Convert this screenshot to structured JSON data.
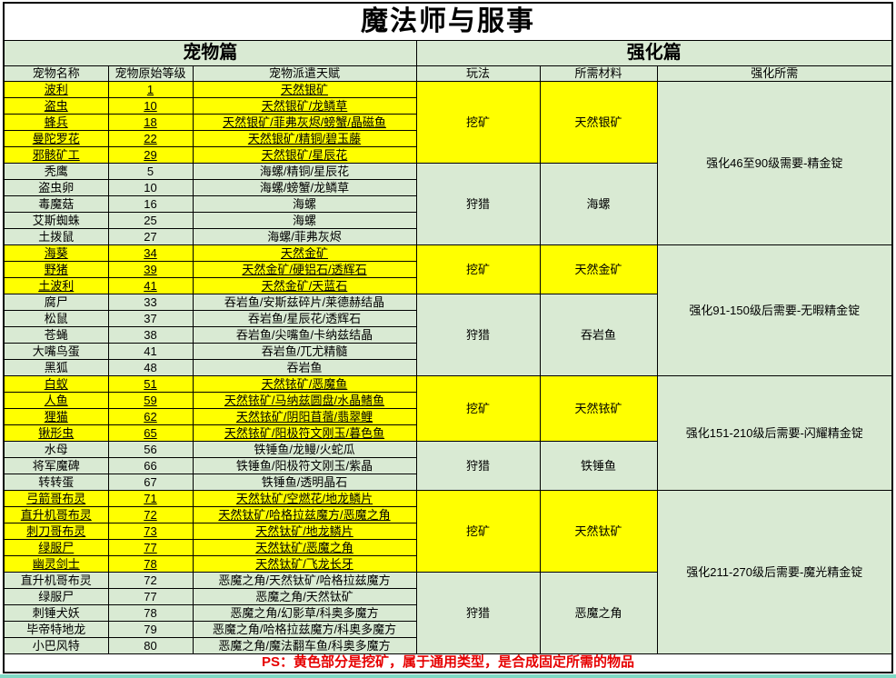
{
  "title": "魔法师与服事",
  "sections": {
    "pets": "宠物篇",
    "enhance": "强化篇"
  },
  "columns": [
    "宠物名称",
    "宠物原始等级",
    "宠物派遣天赋",
    "玩法",
    "所需材料",
    "强化所需"
  ],
  "colors": {
    "highlight": "#ffff00",
    "row_bg": "#d9ead3",
    "title_bg": "#ffffff",
    "border": "#000000",
    "footer_text": "#e60000"
  },
  "pets": [
    {
      "name": "波利",
      "level": "1",
      "talent": "天然银矿",
      "mining": true
    },
    {
      "name": "盗虫",
      "level": "10",
      "talent": "天然银矿/龙鳞草",
      "mining": true
    },
    {
      "name": "蜂兵",
      "level": "18",
      "talent": "天然银矿/菲弗灰烬/螃蟹/晶磁鱼",
      "mining": true
    },
    {
      "name": "曼陀罗花",
      "level": "22",
      "talent": "天然银矿/精铜/碧玉藤",
      "mining": true
    },
    {
      "name": "邪骸矿工",
      "level": "29",
      "talent": "天然银矿/星辰花",
      "mining": true
    },
    {
      "name": "秃鹰",
      "level": "5",
      "talent": "海螺/精铜/星辰花",
      "mining": false
    },
    {
      "name": "盗虫卵",
      "level": "10",
      "talent": "海螺/螃蟹/龙鳞草",
      "mining": false
    },
    {
      "name": "毒魔菇",
      "level": "16",
      "talent": "海螺",
      "mining": false
    },
    {
      "name": "艾斯蜘蛛",
      "level": "25",
      "talent": "海螺",
      "mining": false
    },
    {
      "name": "土拨鼠",
      "level": "27",
      "talent": "海螺/菲弗灰烬",
      "mining": false
    },
    {
      "name": "海葵",
      "level": "34",
      "talent": "天然金矿",
      "mining": true
    },
    {
      "name": "野猪",
      "level": "39",
      "talent": "天然金矿/硬铝石/透辉石",
      "mining": true
    },
    {
      "name": "土波利",
      "level": "41",
      "talent": "天然金矿/天蓝石",
      "mining": true
    },
    {
      "name": "腐尸",
      "level": "33",
      "talent": "吞岩鱼/安斯兹碎片/莱德赫结晶",
      "mining": false
    },
    {
      "name": "松鼠",
      "level": "37",
      "talent": "吞岩鱼/星辰花/透辉石",
      "mining": false
    },
    {
      "name": "苍蝇",
      "level": "38",
      "talent": "吞岩鱼/尖嘴鱼/卡纳兹结晶",
      "mining": false
    },
    {
      "name": "大嘴鸟蛋",
      "level": "41",
      "talent": "吞岩鱼/兀尤精髓",
      "mining": false
    },
    {
      "name": "黑狐",
      "level": "48",
      "talent": "吞岩鱼",
      "mining": false
    },
    {
      "name": "白蚁",
      "level": "51",
      "talent": "天然铱矿/恶魔鱼",
      "mining": true
    },
    {
      "name": "人鱼",
      "level": "59",
      "talent": "天然铱矿/马纳兹圆盘/水晶鳍鱼",
      "mining": true
    },
    {
      "name": "狸猫",
      "level": "62",
      "talent": "天然铱矿/阴阳苜蓿/翡翠鲤",
      "mining": true
    },
    {
      "name": "锹形虫",
      "level": "65",
      "talent": "天然铱矿/阳极符文刚玉/暮色鱼",
      "mining": true
    },
    {
      "name": "水母",
      "level": "56",
      "talent": "铁锤鱼/龙鳗/火蛇瓜",
      "mining": false
    },
    {
      "name": "将军魔碑",
      "level": "66",
      "talent": "铁锤鱼/阳极符文刚玉/紫晶",
      "mining": false
    },
    {
      "name": "转转蛋",
      "level": "67",
      "talent": "铁锤鱼/透明晶石",
      "mining": false
    },
    {
      "name": "弓箭哥布灵",
      "level": "71",
      "talent": "天然钛矿/空燃花/地龙鳞片",
      "mining": true
    },
    {
      "name": "直升机哥布灵",
      "level": "72",
      "talent": "天然钛矿/哈格拉兹魔方/恶魔之角",
      "mining": true
    },
    {
      "name": "刺刀哥布灵",
      "level": "73",
      "talent": "天然钛矿/地龙鳞片",
      "mining": true
    },
    {
      "name": "绿服尸",
      "level": "77",
      "talent": "天然钛矿/恶魔之角",
      "mining": true
    },
    {
      "name": "幽灵剑士",
      "level": "78",
      "talent": "天然钛矿/飞龙长牙",
      "mining": true
    },
    {
      "name": "直升机哥布灵",
      "level": "72",
      "talent": "恶魔之角/天然钛矿/哈格拉兹魔方",
      "mining": false
    },
    {
      "name": "绿服尸",
      "level": "77",
      "talent": "恶魔之角/天然钛矿",
      "mining": false
    },
    {
      "name": "刺锤犬妖",
      "level": "78",
      "talent": "恶魔之角/幻影草/科奥多魔方",
      "mining": false
    },
    {
      "name": "毕帝特地龙",
      "level": "79",
      "talent": "恶魔之角/哈格拉兹魔方/科奥多魔方",
      "mining": false
    },
    {
      "name": "小巴风特",
      "level": "80",
      "talent": "恶魔之角/魔法翻车鱼/科奥多魔方",
      "mining": false
    }
  ],
  "play_groups": [
    {
      "start": 0,
      "span": 5,
      "play": "挖矿",
      "material": "天然银矿",
      "mining": true
    },
    {
      "start": 5,
      "span": 5,
      "play": "狩猎",
      "material": "海螺",
      "mining": false
    },
    {
      "start": 10,
      "span": 3,
      "play": "挖矿",
      "material": "天然金矿",
      "mining": true
    },
    {
      "start": 13,
      "span": 5,
      "play": "狩猎",
      "material": "吞岩鱼",
      "mining": false
    },
    {
      "start": 18,
      "span": 4,
      "play": "挖矿",
      "material": "天然铱矿",
      "mining": true
    },
    {
      "start": 22,
      "span": 3,
      "play": "狩猎",
      "material": "铁锤鱼",
      "mining": false
    },
    {
      "start": 25,
      "span": 5,
      "play": "挖矿",
      "material": "天然钛矿",
      "mining": true
    },
    {
      "start": 30,
      "span": 5,
      "play": "狩猎",
      "material": "恶魔之角",
      "mining": false
    }
  ],
  "enhance_groups": [
    {
      "start": 0,
      "span": 10,
      "label": "强化46至90级需要-精金锭"
    },
    {
      "start": 10,
      "span": 8,
      "label": "强化91-150级后需要-无暇精金锭"
    },
    {
      "start": 18,
      "span": 7,
      "label": "强化151-210级后需要-闪耀精金锭"
    },
    {
      "start": 25,
      "span": 10,
      "label": "强化211-270级后需要-魔光精金锭"
    }
  ],
  "footer": "PS：黄色部分是挖矿，属于通用类型，是合成固定所需的物品"
}
